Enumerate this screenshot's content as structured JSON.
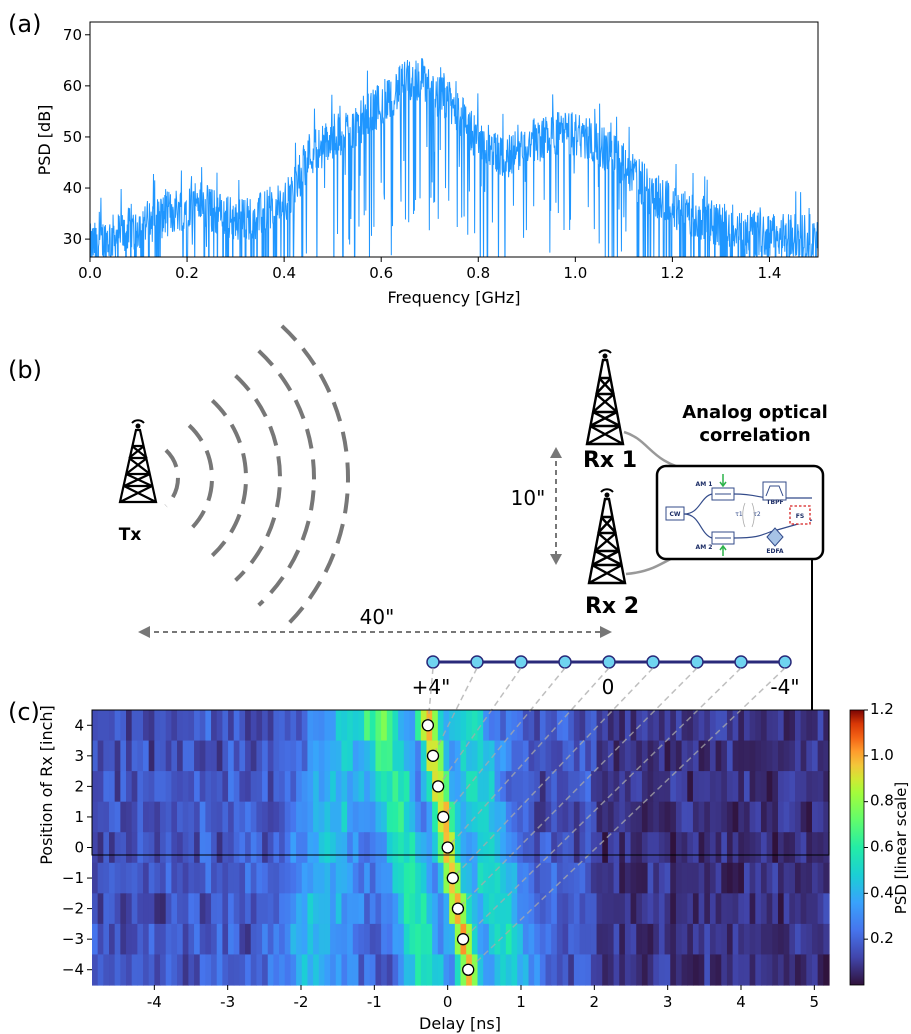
{
  "figure": {
    "panels": [
      {
        "label": "(a)"
      },
      {
        "label": "(b)"
      },
      {
        "label": "(c)"
      }
    ]
  },
  "colors": {
    "psd_line": "#1f96ff",
    "dash_gray": "#777777",
    "line_navy": "#2a2a7a",
    "marker_cyan": "#6fd4f0"
  },
  "panel_b": {
    "tx_label": "Tx",
    "rx1_label": "Rx 1",
    "rx2_label": "Rx 2",
    "vertical_distance": "10\"",
    "horizontal_distance": "40\"",
    "correlator_title_line1": "Analog optical",
    "correlator_title_line2": "correlation",
    "correlator_blocks": {
      "cw": "CW",
      "am1": "AM 1",
      "am2": "AM 2",
      "tbpf": "TBPF",
      "fs": "FS",
      "edfa": "EDFA",
      "tau1": "τ1",
      "tau2": "τ2"
    },
    "scale_left": "+4\"",
    "scale_center": "0",
    "scale_right": "-4\""
  },
  "chart_data": [
    {
      "type": "line",
      "panel": "(a)",
      "xlabel": "Frequency [GHz]",
      "ylabel": "PSD [dB]",
      "xlim": [
        0.0,
        1.5
      ],
      "ylim": [
        26.5,
        72.5
      ],
      "xticks": [
        "0.0",
        "0.2",
        "0.4",
        "0.6",
        "0.8",
        "1.0",
        "1.2",
        "1.4"
      ],
      "yticks": [
        "30",
        "40",
        "50",
        "60",
        "70"
      ],
      "series": [
        {
          "x": [
            0.0,
            0.05,
            0.1,
            0.15,
            0.2,
            0.22,
            0.25,
            0.3,
            0.35,
            0.4,
            0.42,
            0.45,
            0.5,
            0.55,
            0.6,
            0.65,
            0.68,
            0.7,
            0.75,
            0.8,
            0.85,
            0.9,
            0.95,
            1.0,
            1.05,
            1.1,
            1.15,
            1.2,
            1.25,
            1.3,
            1.35,
            1.4,
            1.45,
            1.5
          ],
          "values": [
            29,
            31,
            33,
            35,
            37,
            38,
            36,
            34,
            35,
            37,
            40,
            47,
            50,
            53,
            57,
            61,
            62,
            60,
            56,
            50,
            46,
            49,
            51,
            51,
            49,
            45,
            40,
            37,
            35,
            33,
            32,
            31,
            31,
            31
          ]
        }
      ]
    },
    {
      "type": "heatmap",
      "panel": "(c)",
      "xlabel": "Delay [ns]",
      "ylabel": "Position of Rx [inch]",
      "xlim": [
        -4.85,
        5.2
      ],
      "ylim": [
        -4.5,
        4.5
      ],
      "xticks": [
        "-4",
        "-3",
        "-2",
        "-1",
        "0",
        "1",
        "2",
        "3",
        "4",
        "5"
      ],
      "yticks": [
        "4",
        "3",
        "2",
        "1",
        "0",
        "−1",
        "−2",
        "−3",
        "−4"
      ],
      "colorbar": {
        "label": "PSD [linear scale]",
        "min": 0.0,
        "max": 1.2,
        "ticks": [
          "1.2",
          "1.0",
          "0.8",
          "0.6",
          "0.4",
          "0.2"
        ]
      },
      "peak_positions": [
        4,
        3,
        2,
        1,
        0,
        -1,
        -2,
        -3,
        -4
      ],
      "peak_delays": [
        -0.27,
        -0.2,
        -0.13,
        -0.06,
        0.0,
        0.07,
        0.14,
        0.21,
        0.28
      ]
    }
  ]
}
